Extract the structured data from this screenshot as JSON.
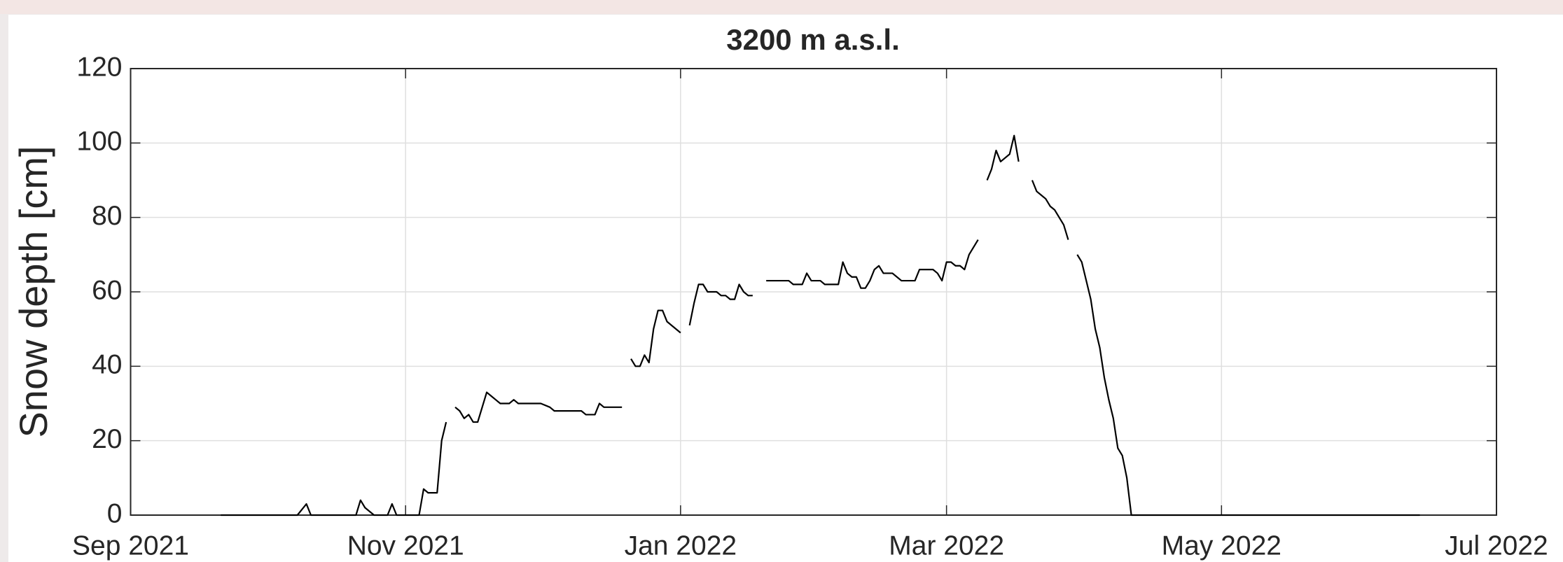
{
  "chart_data": {
    "type": "line",
    "title": "3200 m a.s.l.",
    "ylabel": "Snow depth [cm]",
    "color": "#000000",
    "grid": true,
    "xlim": [
      0,
      303
    ],
    "xticks": [
      {
        "value": 0,
        "label": "Sep 2021"
      },
      {
        "value": 61,
        "label": "Nov 2021"
      },
      {
        "value": 122,
        "label": "Jan 2022"
      },
      {
        "value": 181,
        "label": "Mar 2022"
      },
      {
        "value": 242,
        "label": "May 2022"
      },
      {
        "value": 303,
        "label": "Jul 2022"
      }
    ],
    "ylim": [
      0,
      120
    ],
    "yticks": [
      0,
      20,
      40,
      60,
      80,
      100,
      120
    ],
    "x": [
      20,
      37,
      39,
      40,
      50,
      51,
      52,
      54,
      57,
      58,
      59,
      64,
      65,
      66,
      68,
      69,
      70,
      71,
      72,
      73,
      74,
      75,
      76,
      77,
      78,
      79,
      80,
      81,
      82,
      84,
      85,
      86,
      91,
      93,
      94,
      100,
      101,
      103,
      104,
      105,
      109,
      110,
      111,
      112,
      113,
      114,
      115,
      116,
      117,
      118,
      119,
      120,
      122,
      123,
      124,
      125,
      126,
      127,
      128,
      130,
      131,
      132,
      133,
      134,
      135,
      136,
      137,
      138,
      139,
      141,
      146,
      147,
      149,
      150,
      151,
      153,
      154,
      157,
      158,
      159,
      160,
      161,
      162,
      163,
      164,
      165,
      166,
      167,
      169,
      170,
      171,
      174,
      175,
      178,
      179,
      180,
      181,
      182,
      183,
      184,
      185,
      186,
      187,
      188,
      189,
      190,
      191,
      192,
      193,
      195,
      196,
      197,
      198,
      200,
      201,
      202,
      203,
      204,
      205,
      206,
      207,
      208,
      209,
      210,
      211,
      212,
      213,
      214,
      215,
      216,
      217,
      218,
      219,
      220,
      221,
      222,
      286
    ],
    "values": [
      0,
      0,
      3,
      0,
      0,
      4,
      2,
      0,
      0,
      3,
      0,
      0,
      7,
      6,
      6,
      20,
      25,
      null,
      29,
      28,
      26,
      27,
      25,
      25,
      29,
      33,
      32,
      31,
      30,
      30,
      31,
      30,
      30,
      29,
      28,
      28,
      27,
      27,
      30,
      29,
      29,
      null,
      42,
      40,
      40,
      43,
      41,
      50,
      55,
      55,
      52,
      51,
      49,
      null,
      51,
      57,
      62,
      62,
      60,
      60,
      59,
      59,
      58,
      58,
      62,
      60,
      59,
      59,
      null,
      63,
      63,
      62,
      62,
      65,
      63,
      63,
      62,
      62,
      68,
      65,
      64,
      64,
      61,
      61,
      63,
      66,
      67,
      65,
      65,
      64,
      63,
      63,
      66,
      66,
      65,
      63,
      68,
      68,
      67,
      67,
      66,
      70,
      72,
      74,
      null,
      90,
      93,
      98,
      95,
      97,
      102,
      95,
      null,
      90,
      87,
      86,
      85,
      83,
      82,
      80,
      78,
      74,
      null,
      70,
      68,
      63,
      58,
      50,
      45,
      37,
      31,
      26,
      18,
      16,
      10,
      0,
      0
    ]
  }
}
